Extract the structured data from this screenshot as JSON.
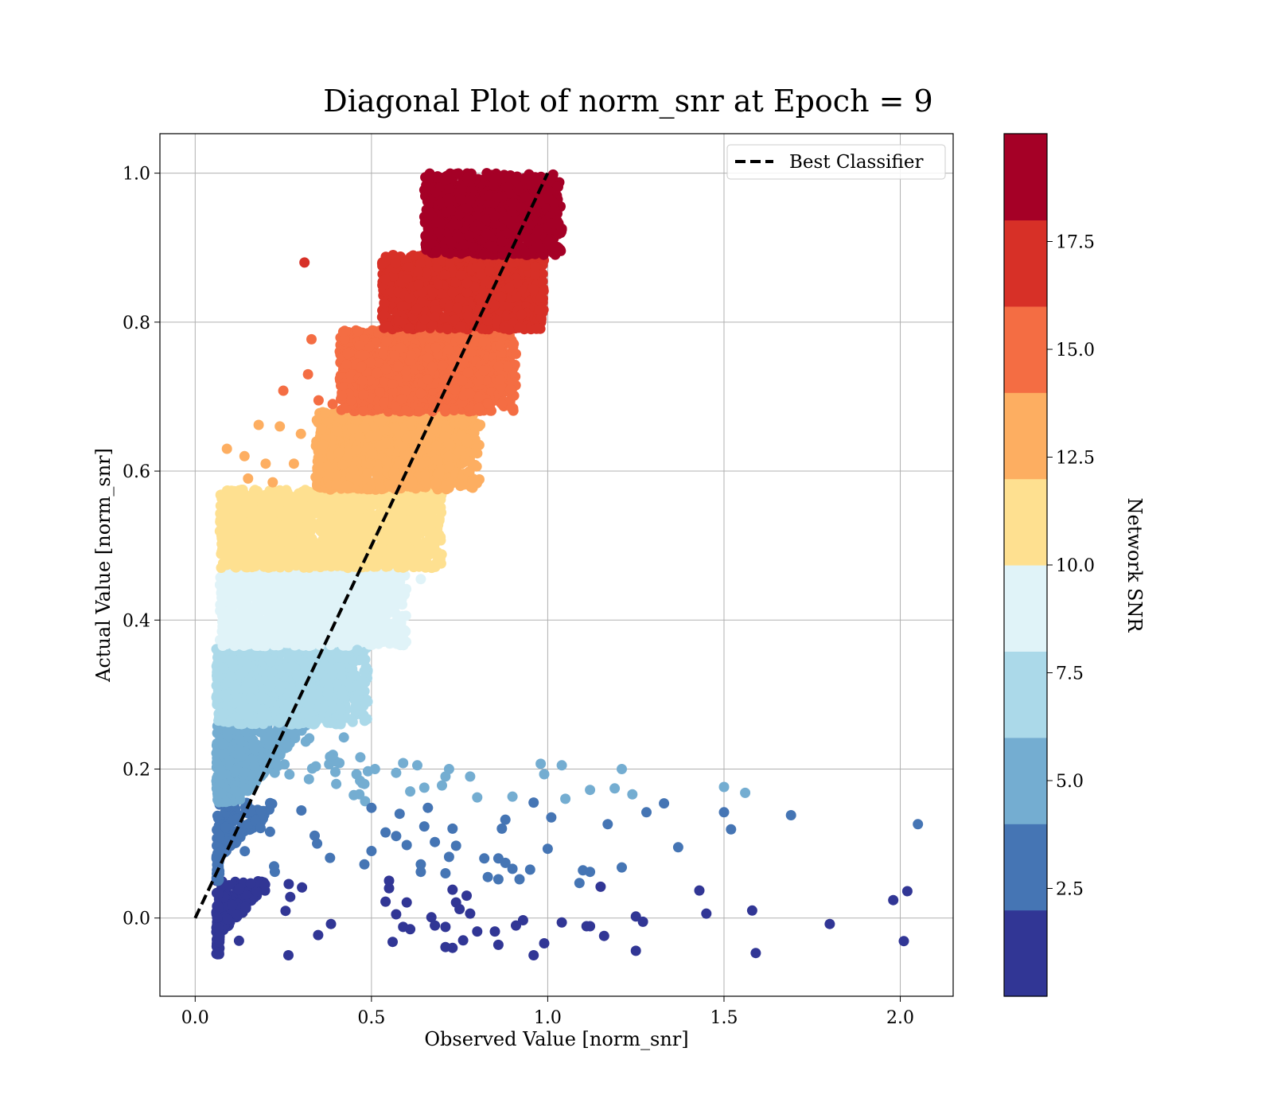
{
  "chart_data": {
    "type": "scatter",
    "title": "Diagonal Plot of norm_snr at Epoch = 9",
    "xlabel": "Observed Value [norm_snr]",
    "ylabel": "Actual Value [norm_snr]",
    "xlim": [
      -0.1,
      2.15
    ],
    "ylim": [
      -0.105,
      1.053
    ],
    "xticks": [
      0.0,
      0.5,
      1.0,
      1.5,
      2.0
    ],
    "xtick_labels": [
      "0.0",
      "0.5",
      "1.0",
      "1.5",
      "2.0"
    ],
    "yticks": [
      0.0,
      0.2,
      0.4,
      0.6,
      0.8,
      1.0
    ],
    "ytick_labels": [
      "0.0",
      "0.2",
      "0.4",
      "0.6",
      "0.8",
      "1.0"
    ],
    "grid": true,
    "legend": {
      "placement": "upper-right",
      "entries": [
        "Best Classifier"
      ]
    },
    "reference_line": {
      "name": "Best Classifier",
      "style": "dashed",
      "color": "#000000",
      "x": [
        0.0,
        1.0
      ],
      "y": [
        0.0,
        1.0
      ]
    },
    "colorbar": {
      "label": "Network SNR",
      "range": [
        0,
        20
      ],
      "ticks": [
        2.5,
        5.0,
        7.5,
        10.0,
        12.5,
        15.0,
        17.5
      ],
      "tick_labels": [
        "2.5",
        "5.0",
        "7.5",
        "10.0",
        "12.5",
        "15.0",
        "17.5"
      ],
      "colors": [
        "#313695",
        "#4575b4",
        "#74add1",
        "#abd9e9",
        "#e0f3f8",
        "#fee090",
        "#fdae61",
        "#f46d43",
        "#d73027",
        "#a50026"
      ]
    },
    "bands": [
      {
        "ymin": -0.05,
        "ymax": 0.05,
        "xmin": 0.06,
        "xmax": 0.12,
        "xmax_ext": 0.42,
        "color": "#313695",
        "density": 1.2
      },
      {
        "ymin": 0.05,
        "ymax": 0.155,
        "xmin": 0.06,
        "xmax": 0.12,
        "xmax_ext": 0.45,
        "color": "#4575b4",
        "density": 1.0
      },
      {
        "ymin": 0.155,
        "ymax": 0.26,
        "xmin": 0.06,
        "xmax": 0.22,
        "xmax_ext": 0.47,
        "color": "#74add1",
        "density": 1.0
      },
      {
        "ymin": 0.26,
        "ymax": 0.365,
        "xmin": 0.06,
        "xmax": 0.44,
        "xmax_ext": 0.47,
        "color": "#abd9e9",
        "density": 1.0
      },
      {
        "ymin": 0.365,
        "ymax": 0.47,
        "xmin": 0.07,
        "xmax": 0.55,
        "xmax_ext": 0.58,
        "color": "#e0f3f8",
        "density": 1.0
      },
      {
        "ymin": 0.47,
        "ymax": 0.575,
        "xmin": 0.07,
        "xmax": 0.65,
        "xmax_ext": 0.68,
        "color": "#fee090",
        "density": 1.0
      },
      {
        "ymin": 0.575,
        "ymax": 0.68,
        "xmin": 0.34,
        "xmax": 0.75,
        "xmax_ext": 0.79,
        "color": "#fdae61",
        "density": 1.0
      },
      {
        "ymin": 0.68,
        "ymax": 0.79,
        "xmin": 0.41,
        "xmax": 0.86,
        "xmax_ext": 0.89,
        "color": "#f46d43",
        "density": 1.0
      },
      {
        "ymin": 0.79,
        "ymax": 0.89,
        "xmin": 0.53,
        "xmax": 0.96,
        "xmax_ext": 0.97,
        "color": "#d73027",
        "density": 1.0
      },
      {
        "ymin": 0.89,
        "ymax": 1.0,
        "xmin": 0.65,
        "xmax": 1.0,
        "xmax_ext": 1.02,
        "color": "#a50026",
        "density": 1.0
      }
    ],
    "outliers": [
      {
        "x": 0.31,
        "y": 0.88,
        "c": "#d73027"
      },
      {
        "x": 0.33,
        "y": 0.777,
        "c": "#f46d43"
      },
      {
        "x": 0.42,
        "y": 0.787,
        "c": "#f46d43"
      },
      {
        "x": 0.25,
        "y": 0.708,
        "c": "#f46d43"
      },
      {
        "x": 0.32,
        "y": 0.73,
        "c": "#f46d43"
      },
      {
        "x": 0.35,
        "y": 0.695,
        "c": "#f46d43"
      },
      {
        "x": 0.39,
        "y": 0.69,
        "c": "#f46d43"
      },
      {
        "x": 0.18,
        "y": 0.662,
        "c": "#fdae61"
      },
      {
        "x": 0.24,
        "y": 0.66,
        "c": "#fdae61"
      },
      {
        "x": 0.09,
        "y": 0.63,
        "c": "#fdae61"
      },
      {
        "x": 0.14,
        "y": 0.62,
        "c": "#fdae61"
      },
      {
        "x": 0.2,
        "y": 0.61,
        "c": "#fdae61"
      },
      {
        "x": 0.28,
        "y": 0.61,
        "c": "#fdae61"
      },
      {
        "x": 0.3,
        "y": 0.65,
        "c": "#fdae61"
      },
      {
        "x": 0.15,
        "y": 0.59,
        "c": "#fdae61"
      },
      {
        "x": 0.22,
        "y": 0.585,
        "c": "#fdae61"
      },
      {
        "x": 0.09,
        "y": 0.566,
        "c": "#fee090"
      },
      {
        "x": 0.12,
        "y": 0.57,
        "c": "#fee090"
      },
      {
        "x": 0.64,
        "y": 0.455,
        "c": "#e0f3f8"
      },
      {
        "x": 0.46,
        "y": 0.36,
        "c": "#abd9e9"
      },
      {
        "x": 0.45,
        "y": 0.327,
        "c": "#abd9e9"
      },
      {
        "x": 0.49,
        "y": 0.197,
        "c": "#74add1"
      },
      {
        "x": 0.51,
        "y": 0.2,
        "c": "#74add1"
      },
      {
        "x": 0.59,
        "y": 0.208,
        "c": "#74add1"
      },
      {
        "x": 0.63,
        "y": 0.205,
        "c": "#74add1"
      },
      {
        "x": 0.72,
        "y": 0.2,
        "c": "#74add1"
      },
      {
        "x": 0.98,
        "y": 0.207,
        "c": "#74add1"
      },
      {
        "x": 1.04,
        "y": 0.205,
        "c": "#74add1"
      },
      {
        "x": 1.21,
        "y": 0.2,
        "c": "#74add1"
      },
      {
        "x": 0.57,
        "y": 0.195,
        "c": "#74add1"
      },
      {
        "x": 0.99,
        "y": 0.193,
        "c": "#74add1"
      },
      {
        "x": 0.71,
        "y": 0.19,
        "c": "#74add1"
      },
      {
        "x": 0.78,
        "y": 0.19,
        "c": "#74add1"
      },
      {
        "x": 0.65,
        "y": 0.175,
        "c": "#74add1"
      },
      {
        "x": 0.7,
        "y": 0.178,
        "c": "#74add1"
      },
      {
        "x": 0.61,
        "y": 0.17,
        "c": "#74add1"
      },
      {
        "x": 0.8,
        "y": 0.162,
        "c": "#74add1"
      },
      {
        "x": 0.9,
        "y": 0.163,
        "c": "#74add1"
      },
      {
        "x": 1.05,
        "y": 0.16,
        "c": "#74add1"
      },
      {
        "x": 1.12,
        "y": 0.172,
        "c": "#74add1"
      },
      {
        "x": 1.19,
        "y": 0.174,
        "c": "#74add1"
      },
      {
        "x": 1.24,
        "y": 0.166,
        "c": "#74add1"
      },
      {
        "x": 1.5,
        "y": 0.176,
        "c": "#74add1"
      },
      {
        "x": 1.56,
        "y": 0.168,
        "c": "#74add1"
      },
      {
        "x": 0.48,
        "y": 0.18,
        "c": "#74add1"
      },
      {
        "x": 0.45,
        "y": 0.165,
        "c": "#74add1"
      },
      {
        "x": 0.4,
        "y": 0.18,
        "c": "#74add1"
      },
      {
        "x": 0.5,
        "y": 0.148,
        "c": "#4575b4"
      },
      {
        "x": 0.58,
        "y": 0.14,
        "c": "#4575b4"
      },
      {
        "x": 0.66,
        "y": 0.148,
        "c": "#4575b4"
      },
      {
        "x": 0.73,
        "y": 0.12,
        "c": "#4575b4"
      },
      {
        "x": 0.88,
        "y": 0.132,
        "c": "#4575b4"
      },
      {
        "x": 0.96,
        "y": 0.155,
        "c": "#4575b4"
      },
      {
        "x": 1.01,
        "y": 0.135,
        "c": "#4575b4"
      },
      {
        "x": 1.17,
        "y": 0.126,
        "c": "#4575b4"
      },
      {
        "x": 1.28,
        "y": 0.142,
        "c": "#4575b4"
      },
      {
        "x": 1.33,
        "y": 0.154,
        "c": "#4575b4"
      },
      {
        "x": 1.5,
        "y": 0.142,
        "c": "#4575b4"
      },
      {
        "x": 1.52,
        "y": 0.119,
        "c": "#4575b4"
      },
      {
        "x": 1.69,
        "y": 0.138,
        "c": "#4575b4"
      },
      {
        "x": 2.05,
        "y": 0.126,
        "c": "#4575b4"
      },
      {
        "x": 1.37,
        "y": 0.095,
        "c": "#4575b4"
      },
      {
        "x": 0.54,
        "y": 0.115,
        "c": "#4575b4"
      },
      {
        "x": 0.57,
        "y": 0.11,
        "c": "#4575b4"
      },
      {
        "x": 0.65,
        "y": 0.123,
        "c": "#4575b4"
      },
      {
        "x": 0.68,
        "y": 0.102,
        "c": "#4575b4"
      },
      {
        "x": 0.87,
        "y": 0.12,
        "c": "#4575b4"
      },
      {
        "x": 0.5,
        "y": 0.09,
        "c": "#4575b4"
      },
      {
        "x": 0.6,
        "y": 0.098,
        "c": "#4575b4"
      },
      {
        "x": 0.74,
        "y": 0.097,
        "c": "#4575b4"
      },
      {
        "x": 1.0,
        "y": 0.093,
        "c": "#4575b4"
      },
      {
        "x": 0.72,
        "y": 0.082,
        "c": "#4575b4"
      },
      {
        "x": 0.82,
        "y": 0.08,
        "c": "#4575b4"
      },
      {
        "x": 0.86,
        "y": 0.08,
        "c": "#4575b4"
      },
      {
        "x": 0.88,
        "y": 0.074,
        "c": "#4575b4"
      },
      {
        "x": 0.64,
        "y": 0.072,
        "c": "#4575b4"
      },
      {
        "x": 0.9,
        "y": 0.066,
        "c": "#4575b4"
      },
      {
        "x": 0.95,
        "y": 0.065,
        "c": "#4575b4"
      },
      {
        "x": 1.1,
        "y": 0.064,
        "c": "#4575b4"
      },
      {
        "x": 1.12,
        "y": 0.062,
        "c": "#4575b4"
      },
      {
        "x": 1.21,
        "y": 0.068,
        "c": "#4575b4"
      },
      {
        "x": 0.64,
        "y": 0.062,
        "c": "#4575b4"
      },
      {
        "x": 0.71,
        "y": 0.06,
        "c": "#4575b4"
      },
      {
        "x": 0.83,
        "y": 0.055,
        "c": "#4575b4"
      },
      {
        "x": 0.86,
        "y": 0.052,
        "c": "#4575b4"
      },
      {
        "x": 0.92,
        "y": 0.052,
        "c": "#4575b4"
      },
      {
        "x": 1.09,
        "y": 0.047,
        "c": "#4575b4"
      },
      {
        "x": 0.48,
        "y": 0.072,
        "c": "#4575b4"
      },
      {
        "x": 0.55,
        "y": 0.05,
        "c": "#313695"
      },
      {
        "x": 0.55,
        "y": 0.04,
        "c": "#313695"
      },
      {
        "x": 0.73,
        "y": 0.038,
        "c": "#313695"
      },
      {
        "x": 0.77,
        "y": 0.03,
        "c": "#313695"
      },
      {
        "x": 1.15,
        "y": 0.042,
        "c": "#313695"
      },
      {
        "x": 1.43,
        "y": 0.037,
        "c": "#313695"
      },
      {
        "x": 1.98,
        "y": 0.024,
        "c": "#313695"
      },
      {
        "x": 2.02,
        "y": 0.036,
        "c": "#313695"
      },
      {
        "x": 0.54,
        "y": 0.022,
        "c": "#313695"
      },
      {
        "x": 0.6,
        "y": 0.021,
        "c": "#313695"
      },
      {
        "x": 0.74,
        "y": 0.021,
        "c": "#313695"
      },
      {
        "x": 0.75,
        "y": 0.012,
        "c": "#313695"
      },
      {
        "x": 0.78,
        "y": 0.006,
        "c": "#313695"
      },
      {
        "x": 1.45,
        "y": 0.006,
        "c": "#313695"
      },
      {
        "x": 1.58,
        "y": 0.01,
        "c": "#313695"
      },
      {
        "x": 0.57,
        "y": 0.005,
        "c": "#313695"
      },
      {
        "x": 0.67,
        "y": 0.001,
        "c": "#313695"
      },
      {
        "x": 0.93,
        "y": -0.003,
        "c": "#313695"
      },
      {
        "x": 1.04,
        "y": -0.006,
        "c": "#313695"
      },
      {
        "x": 1.25,
        "y": 0.002,
        "c": "#313695"
      },
      {
        "x": 1.27,
        "y": -0.005,
        "c": "#313695"
      },
      {
        "x": 1.11,
        "y": -0.011,
        "c": "#313695"
      },
      {
        "x": 1.12,
        "y": -0.011,
        "c": "#313695"
      },
      {
        "x": 1.8,
        "y": -0.008,
        "c": "#313695"
      },
      {
        "x": 0.59,
        "y": -0.012,
        "c": "#313695"
      },
      {
        "x": 0.61,
        "y": -0.015,
        "c": "#313695"
      },
      {
        "x": 0.68,
        "y": -0.01,
        "c": "#313695"
      },
      {
        "x": 0.71,
        "y": -0.012,
        "c": "#313695"
      },
      {
        "x": 0.8,
        "y": -0.018,
        "c": "#313695"
      },
      {
        "x": 0.85,
        "y": -0.018,
        "c": "#313695"
      },
      {
        "x": 0.91,
        "y": -0.01,
        "c": "#313695"
      },
      {
        "x": 1.16,
        "y": -0.024,
        "c": "#313695"
      },
      {
        "x": 0.76,
        "y": -0.03,
        "c": "#313695"
      },
      {
        "x": 0.56,
        "y": -0.032,
        "c": "#313695"
      },
      {
        "x": 0.86,
        "y": -0.036,
        "c": "#313695"
      },
      {
        "x": 0.99,
        "y": -0.034,
        "c": "#313695"
      },
      {
        "x": 2.01,
        "y": -0.031,
        "c": "#313695"
      },
      {
        "x": 0.71,
        "y": -0.039,
        "c": "#313695"
      },
      {
        "x": 0.73,
        "y": -0.04,
        "c": "#313695"
      },
      {
        "x": 1.25,
        "y": -0.044,
        "c": "#313695"
      },
      {
        "x": 0.96,
        "y": -0.05,
        "c": "#313695"
      },
      {
        "x": 1.59,
        "y": -0.047,
        "c": "#313695"
      }
    ]
  }
}
